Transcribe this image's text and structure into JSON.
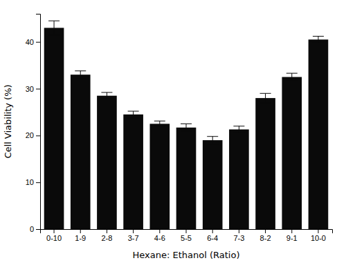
{
  "chart_data": {
    "type": "bar",
    "xlabel": "Hexane: Ethanol (Ratio)",
    "ylabel": "Cell Viability (%)",
    "categories": [
      "0-10",
      "1-9",
      "2-8",
      "3-7",
      "4-6",
      "5-5",
      "6-4",
      "7-3",
      "8-2",
      "9-1",
      "10-0"
    ],
    "values": [
      43.0,
      33.0,
      28.5,
      24.5,
      22.5,
      21.7,
      19.0,
      21.3,
      28.0,
      32.5,
      40.5
    ],
    "errors": [
      1.5,
      0.8,
      0.7,
      0.7,
      0.6,
      0.8,
      0.8,
      0.7,
      1.0,
      0.8,
      0.7
    ],
    "color": "#0a0a0a",
    "ylim": [
      0,
      46
    ],
    "yticks": [
      0,
      10,
      20,
      30,
      40
    ],
    "grid": false
  }
}
